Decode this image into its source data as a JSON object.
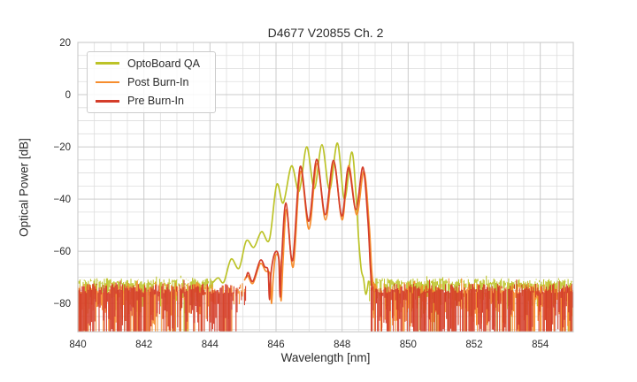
{
  "chart_data": {
    "type": "line",
    "title": "D4677 V20855 Ch. 2",
    "xlabel": "Wavelength [nm]",
    "ylabel": "Optical Power [dB]",
    "xlim": [
      840,
      855
    ],
    "ylim": [
      -90.85,
      20
    ],
    "x_ticks": [
      840,
      842,
      844,
      846,
      848,
      850,
      852,
      854
    ],
    "y_ticks": [
      20,
      0,
      -20,
      -40,
      -60,
      -80
    ],
    "grid": {
      "major": true,
      "minor": true,
      "major_x_step": 2,
      "minor_x_step": 0.5,
      "major_y_step": 20,
      "minor_y_step": 5,
      "major_color": "#cbcbcb",
      "minor_color": "#dddddd",
      "frame_color": "#c9c9c9"
    },
    "legend": {
      "position": "upper-left"
    },
    "series": [
      {
        "name": "OptoBoard QA",
        "color": "#bcc328",
        "seed": 101,
        "signal": [
          [
            844.1,
            -71.8
          ],
          [
            844.25,
            -70.2
          ],
          [
            844.42,
            -71.8
          ],
          [
            844.64,
            -63.0
          ],
          [
            844.88,
            -66.5
          ],
          [
            845.1,
            -56.0
          ],
          [
            845.33,
            -58.5
          ],
          [
            845.56,
            -52.5
          ],
          [
            845.8,
            -55.5
          ],
          [
            846.02,
            -34.5
          ],
          [
            846.22,
            -41.5
          ],
          [
            846.47,
            -27.3
          ],
          [
            846.7,
            -37.0
          ],
          [
            846.93,
            -20.0
          ],
          [
            847.16,
            -36.0
          ],
          [
            847.39,
            -19.2
          ],
          [
            847.62,
            -36.5
          ],
          [
            847.86,
            -18.6
          ],
          [
            848.07,
            -40.0
          ],
          [
            848.29,
            -22.0
          ],
          [
            848.42,
            -38.0
          ],
          [
            848.5,
            -55.0
          ],
          [
            848.58,
            -67.0
          ],
          [
            848.65,
            -70.5
          ],
          [
            848.72,
            -76.5
          ],
          [
            848.8,
            -71.5
          ]
        ],
        "noise": {
          "regions": [
            [
              840.0,
              844.1
            ],
            [
              848.8,
              855.0
            ]
          ],
          "base": -71.6,
          "jitter": 1.3,
          "spike_max": 13,
          "spike_pow": 1.7,
          "full_prob": 0.05,
          "skip_prob": 0.0,
          "taper_nm": 0.0
        }
      },
      {
        "name": "Post Burn-In",
        "color": "#f68d2e",
        "seed": 202,
        "signal": [
          [
            845.05,
            -71.0
          ],
          [
            845.14,
            -69.3
          ],
          [
            845.3,
            -72.3
          ],
          [
            845.52,
            -64.8
          ],
          [
            845.68,
            -67.5
          ],
          [
            845.82,
            -69.0
          ],
          [
            845.86,
            -80.0
          ],
          [
            845.92,
            -69.5
          ],
          [
            845.99,
            -61.5
          ],
          [
            846.1,
            -64.0
          ],
          [
            846.15,
            -79.0
          ],
          [
            846.21,
            -64.5
          ],
          [
            846.32,
            -44.0
          ],
          [
            846.52,
            -66.0
          ],
          [
            846.74,
            -29.5
          ],
          [
            847.0,
            -51.5
          ],
          [
            847.24,
            -26.3
          ],
          [
            847.5,
            -48.0
          ],
          [
            847.75,
            -26.0
          ],
          [
            848.0,
            -48.0
          ],
          [
            848.2,
            -27.2
          ],
          [
            848.44,
            -46.0
          ],
          [
            848.66,
            -29.4
          ],
          [
            848.82,
            -50.0
          ],
          [
            848.9,
            -68.0
          ],
          [
            848.97,
            -74.5
          ]
        ],
        "noise": {
          "regions": [
            [
              840.0,
              845.05
            ],
            [
              848.95,
              855.0
            ]
          ],
          "base": -74.0,
          "jitter": 2.0,
          "spike_max": 15,
          "spike_pow": 1.0,
          "full_prob": 0.33,
          "skip_prob": 0.1,
          "taper_nm": 0.45
        }
      },
      {
        "name": "Pre Burn-In",
        "color": "#d43d2a",
        "seed": 303,
        "signal": [
          [
            845.1,
            -70.0
          ],
          [
            845.16,
            -68.2
          ],
          [
            845.3,
            -71.5
          ],
          [
            845.52,
            -63.5
          ],
          [
            845.66,
            -66.0
          ],
          [
            845.76,
            -67.5
          ],
          [
            845.8,
            -78.5
          ],
          [
            845.85,
            -68.0
          ],
          [
            845.97,
            -60.5
          ],
          [
            846.08,
            -62.5
          ],
          [
            846.12,
            -77.5
          ],
          [
            846.17,
            -63.0
          ],
          [
            846.3,
            -41.5
          ],
          [
            846.5,
            -63.5
          ],
          [
            846.73,
            -27.6
          ],
          [
            846.99,
            -48.5
          ],
          [
            847.23,
            -24.8
          ],
          [
            847.49,
            -46.0
          ],
          [
            847.74,
            -25.2
          ],
          [
            847.99,
            -46.5
          ],
          [
            848.19,
            -28.0
          ],
          [
            848.42,
            -44.0
          ],
          [
            848.63,
            -27.8
          ],
          [
            848.78,
            -48.0
          ],
          [
            848.85,
            -65.0
          ],
          [
            848.9,
            -74.5
          ]
        ],
        "noise": {
          "regions": [
            [
              840.0,
              845.08
            ],
            [
              848.88,
              855.0
            ]
          ],
          "base": -74.3,
          "jitter": 1.9,
          "spike_max": 17,
          "spike_pow": 0.85,
          "full_prob": 0.48,
          "skip_prob": 0.05,
          "taper_nm": 0.45
        }
      }
    ]
  }
}
